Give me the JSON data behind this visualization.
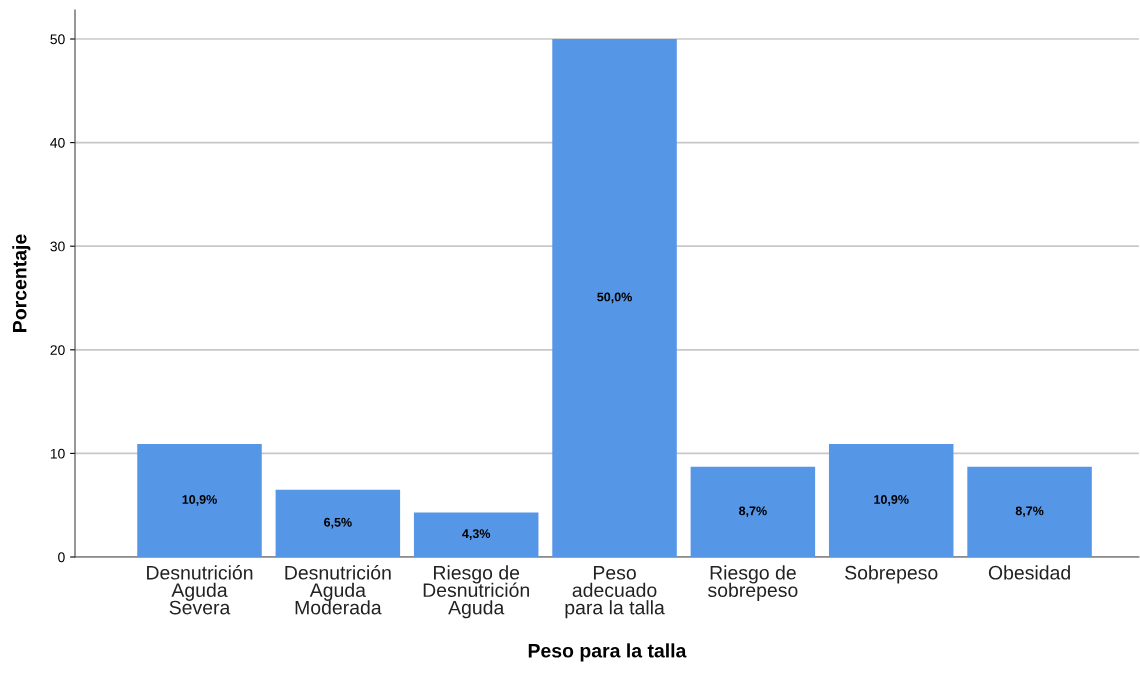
{
  "chart_data": {
    "type": "bar",
    "xlabel": "Peso para la talla",
    "ylabel": "Porcentaje",
    "categories": [
      "Desnutrición\nAguda\nSevera",
      "Desnutrición\nAguda\nModerada",
      "Riesgo de\nDesnutrición\nAguda",
      "Peso\nadecuado\npara la talla",
      "Riesgo de\nsobrepeso",
      "Sobrepeso",
      "Obesidad"
    ],
    "values": [
      10.9,
      6.5,
      4.3,
      50.0,
      8.7,
      10.9,
      8.7
    ],
    "value_labels": [
      "10,9%",
      "6,5%",
      "4,3%",
      "50,0%",
      "8,7%",
      "10,9%",
      "8,7%"
    ],
    "color": "#5596e6",
    "ylim": [
      0,
      52.8
    ],
    "yticks": [
      0,
      10,
      20,
      30,
      40,
      50
    ],
    "grid": "y",
    "legend": false
  }
}
